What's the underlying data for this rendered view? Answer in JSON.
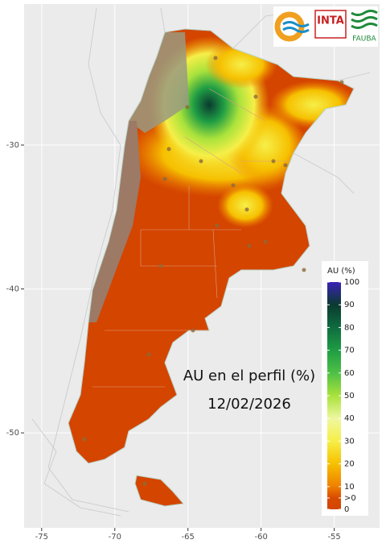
{
  "map": {
    "title": "AU en el perfil (%)",
    "date": "12/02/2026",
    "xlim": [
      -76.2,
      -51.9
    ],
    "ylim": [
      -56.6,
      -20.2
    ],
    "xticks": [
      -75,
      -70,
      -65,
      -60,
      -55
    ],
    "yticks": [
      -30,
      -40,
      -50
    ],
    "legend": {
      "title": "AU (%)",
      "lim": [
        0,
        100
      ],
      "ticks": [
        100,
        90,
        80,
        70,
        60,
        50,
        40,
        30,
        20,
        10,
        {
          "value": 5,
          "label": ">0"
        },
        0
      ]
    },
    "logos": [
      "INTA",
      "FAUBA"
    ]
  }
}
